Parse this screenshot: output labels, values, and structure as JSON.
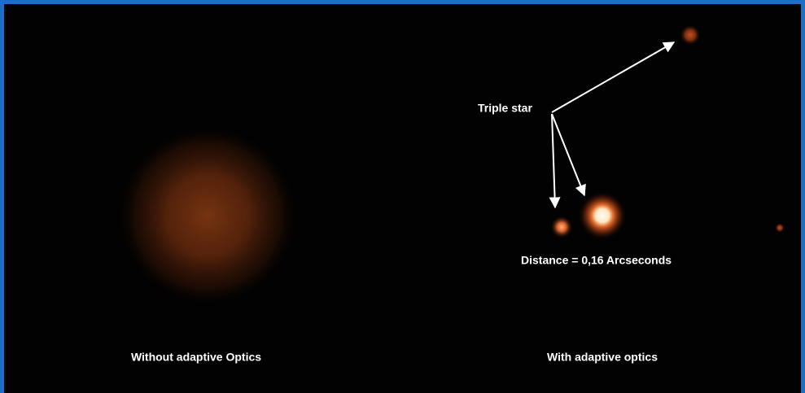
{
  "labels": {
    "triple_star": "Triple star",
    "distance": "Distance = 0,16 Arcseconds",
    "left_caption": "Without adaptive Optics",
    "right_caption": "With adaptive optics"
  }
}
